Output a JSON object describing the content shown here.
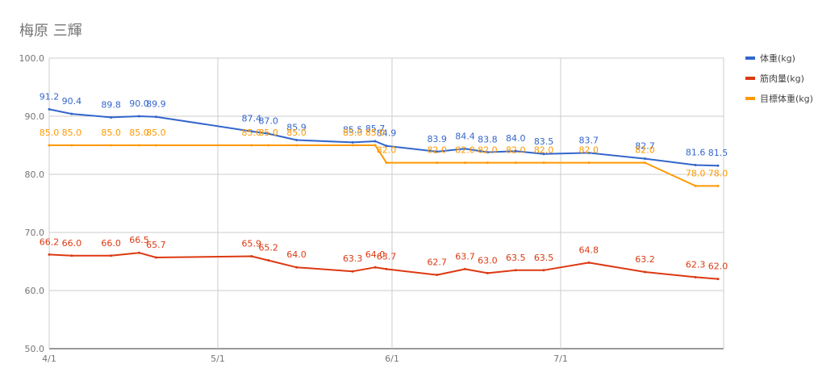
{
  "chart_data": {
    "type": "line",
    "title": "梅原 三輝",
    "ylim": [
      50,
      100
    ],
    "y_ticks": [
      "100.0",
      "90.0",
      "80.0",
      "70.0",
      "60.0",
      "50.0"
    ],
    "y_tick_values": [
      100,
      90,
      80,
      70,
      60,
      50
    ],
    "x_ticks": [
      {
        "label": "4/1",
        "day": 0
      },
      {
        "label": "5/1",
        "day": 30
      },
      {
        "label": "6/1",
        "day": 61
      },
      {
        "label": "7/1",
        "day": 91
      }
    ],
    "xlim_days": [
      0,
      120
    ],
    "grid": true,
    "legend_position": "right",
    "series": [
      {
        "name": "体重(kg)",
        "color": "#3366cc",
        "points": [
          {
            "day": 0,
            "value": 91.2
          },
          {
            "day": 4,
            "value": 90.4
          },
          {
            "day": 11,
            "value": 89.8
          },
          {
            "day": 16,
            "value": 90.0
          },
          {
            "day": 19,
            "value": 89.9
          },
          {
            "day": 36,
            "value": 87.4
          },
          {
            "day": 39,
            "value": 87.0
          },
          {
            "day": 44,
            "value": 85.9
          },
          {
            "day": 54,
            "value": 85.5
          },
          {
            "day": 58,
            "value": 85.7
          },
          {
            "day": 60,
            "value": 84.9
          },
          {
            "day": 69,
            "value": 83.9
          },
          {
            "day": 74,
            "value": 84.4
          },
          {
            "day": 78,
            "value": 83.8
          },
          {
            "day": 83,
            "value": 84.0
          },
          {
            "day": 88,
            "value": 83.5
          },
          {
            "day": 96,
            "value": 83.7
          },
          {
            "day": 106,
            "value": 82.7
          },
          {
            "day": 115,
            "value": 81.6
          },
          {
            "day": 119,
            "value": 81.5
          }
        ]
      },
      {
        "name": "筋肉量(kg)",
        "color": "#dc3912",
        "points": [
          {
            "day": 0,
            "value": 66.2
          },
          {
            "day": 4,
            "value": 66.0
          },
          {
            "day": 11,
            "value": 66.0
          },
          {
            "day": 16,
            "value": 66.5
          },
          {
            "day": 19,
            "value": 65.7
          },
          {
            "day": 36,
            "value": 65.9
          },
          {
            "day": 39,
            "value": 65.2
          },
          {
            "day": 44,
            "value": 64.0
          },
          {
            "day": 54,
            "value": 63.3
          },
          {
            "day": 58,
            "value": 64.0
          },
          {
            "day": 60,
            "value": 63.7
          },
          {
            "day": 69,
            "value": 62.7
          },
          {
            "day": 74,
            "value": 63.7
          },
          {
            "day": 78,
            "value": 63.0
          },
          {
            "day": 83,
            "value": 63.5
          },
          {
            "day": 88,
            "value": 63.5
          },
          {
            "day": 96,
            "value": 64.8
          },
          {
            "day": 106,
            "value": 63.2
          },
          {
            "day": 115,
            "value": 62.3
          },
          {
            "day": 119,
            "value": 62.0
          }
        ]
      },
      {
        "name": "目標体重(kg)",
        "color": "#ff9900",
        "points": [
          {
            "day": 0,
            "value": 85.0
          },
          {
            "day": 4,
            "value": 85.0
          },
          {
            "day": 11,
            "value": 85.0
          },
          {
            "day": 16,
            "value": 85.0
          },
          {
            "day": 19,
            "value": 85.0
          },
          {
            "day": 36,
            "value": 85.0
          },
          {
            "day": 39,
            "value": 85.0
          },
          {
            "day": 44,
            "value": 85.0
          },
          {
            "day": 54,
            "value": 85.0
          },
          {
            "day": 58,
            "value": 85.0
          },
          {
            "day": 60,
            "value": 82.0
          },
          {
            "day": 69,
            "value": 82.0
          },
          {
            "day": 74,
            "value": 82.0
          },
          {
            "day": 78,
            "value": 82.0
          },
          {
            "day": 83,
            "value": 82.0
          },
          {
            "day": 88,
            "value": 82.0
          },
          {
            "day": 96,
            "value": 82.0
          },
          {
            "day": 106,
            "value": 82.0
          },
          {
            "day": 115,
            "value": 78.0
          },
          {
            "day": 119,
            "value": 78.0
          }
        ]
      }
    ]
  }
}
